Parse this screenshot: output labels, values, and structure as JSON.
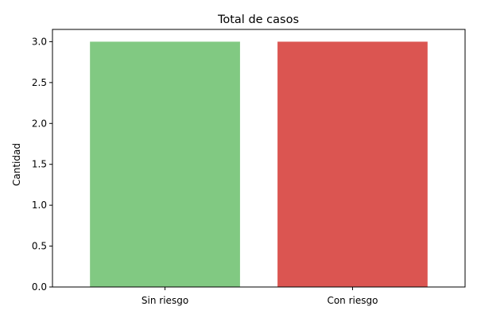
{
  "chart_data": {
    "type": "bar",
    "title": "Total de casos",
    "xlabel": "",
    "ylabel": "Cantidad",
    "categories": [
      "Sin riesgo",
      "Con riesgo"
    ],
    "values": [
      3,
      3
    ],
    "colors": [
      "#81c982",
      "#db5551"
    ],
    "ylim": [
      0,
      3.15
    ],
    "yticks": [
      "0.0",
      "0.5",
      "1.0",
      "1.5",
      "2.0",
      "2.5",
      "3.0"
    ],
    "grid": false,
    "legend": "none"
  }
}
